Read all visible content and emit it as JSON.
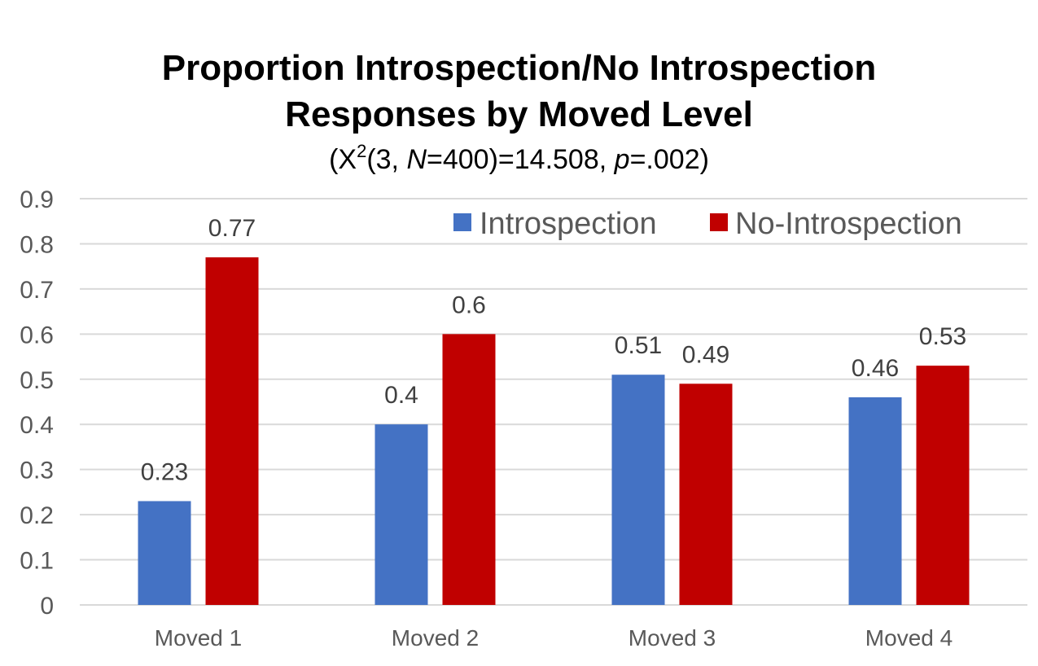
{
  "chart_data": {
    "type": "bar",
    "title_line1": "Proportion Introspection/No Introspection",
    "title_line2": "Responses by Moved Level",
    "subtitle": {
      "open": "(X",
      "sup": "2",
      "mid1": "(3, ",
      "n_label": "N",
      "mid2": "=400)=14.508, ",
      "p_label": "p",
      "end": "=.002)"
    },
    "categories": [
      "Moved 1",
      "Moved 2",
      "Moved 3",
      "Moved 4"
    ],
    "series": [
      {
        "name": "Introspection",
        "color": "#4472C4",
        "values": [
          0.23,
          0.4,
          0.51,
          0.46
        ]
      },
      {
        "name": "No-Introspection",
        "color": "#C00000",
        "values": [
          0.77,
          0.6,
          0.49,
          0.53
        ]
      }
    ],
    "ylim": [
      0,
      0.9
    ],
    "yticks": [
      "0",
      "0.1",
      "0.2",
      "0.3",
      "0.4",
      "0.5",
      "0.6",
      "0.7",
      "0.8",
      "0.9"
    ],
    "grid": true,
    "legend_position": "top-right",
    "data_labels": true
  }
}
